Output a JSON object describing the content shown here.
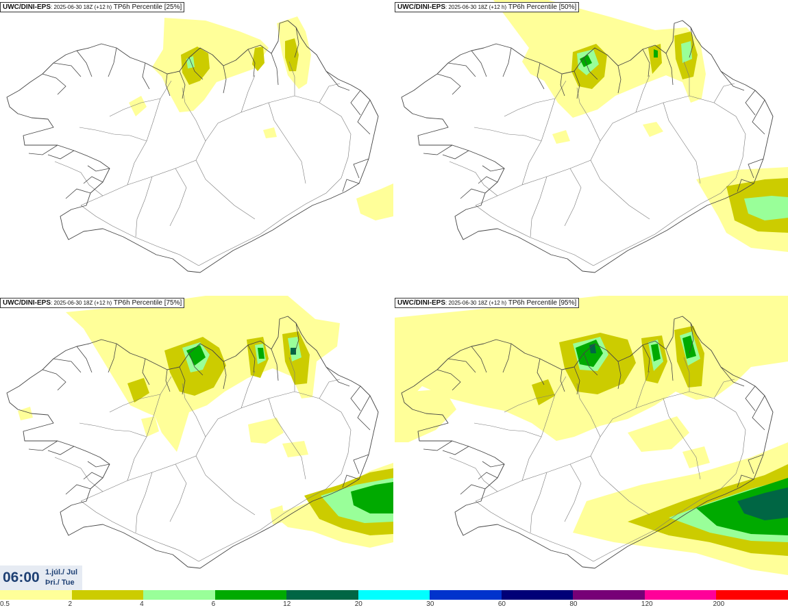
{
  "panels": [
    {
      "model": "UWC/DINI-EPS",
      "run": ": 2025-06-30 18Z (+12 h)",
      "product": " TP6h Percentile [25%]",
      "percentile": 25
    },
    {
      "model": "UWC/DINI-EPS",
      "run": ": 2025-06-30 18Z (+12 h)",
      "product": " TP6h Percentile [50%]",
      "percentile": 50
    },
    {
      "model": "UWC/DINI-EPS",
      "run": ": 2025-06-30 18Z (+12 h)",
      "product": " TP6h Percentile [75%]",
      "percentile": 75
    },
    {
      "model": "UWC/DINI-EPS",
      "run": ": 2025-06-30 18Z (+12 h)",
      "product": " TP6h Percentile [95%]",
      "percentile": 95
    }
  ],
  "valid_time": {
    "clock": "06:00",
    "date_line1": "1.júl./ Jul",
    "date_line2": "Þri./ Tue"
  },
  "legend": {
    "colors": [
      "#ffff99",
      "#cccc00",
      "#99ff99",
      "#00aa00",
      "#006644",
      "#00ffff",
      "#0033cc",
      "#000077",
      "#770077",
      "#ff0099",
      "#ff0000"
    ],
    "labels": [
      "0.5",
      "2",
      "4",
      "6",
      "12",
      "20",
      "30",
      "60",
      "80",
      "120",
      "200"
    ]
  }
}
